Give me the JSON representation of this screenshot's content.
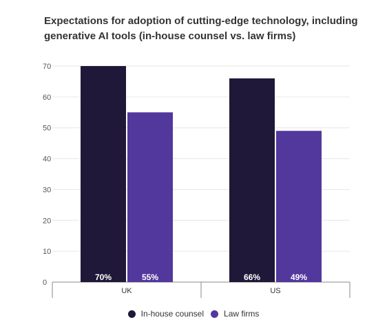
{
  "title": "Expectations for adoption of cutting-edge technology, including generative AI tools (in-house counsel vs. law firms)",
  "chart_data": {
    "type": "bar",
    "title": "Expectations for adoption of cutting-edge technology, including generative AI tools (in-house counsel vs. law firms)",
    "categories": [
      "UK",
      "US"
    ],
    "series": [
      {
        "name": "In-house counsel",
        "values": [
          70,
          66
        ],
        "labels": [
          "70%",
          "66%"
        ],
        "color": "#201838"
      },
      {
        "name": "Law firms",
        "values": [
          55,
          49
        ],
        "labels": [
          "55%",
          "49%"
        ],
        "color": "#52389C"
      }
    ],
    "yticks": [
      "0",
      "10",
      "20",
      "30",
      "40",
      "50",
      "60",
      "70"
    ],
    "ylim": [
      0,
      70
    ],
    "xlabel": "",
    "ylabel": "",
    "grid": true,
    "legend_position": "bottom"
  }
}
